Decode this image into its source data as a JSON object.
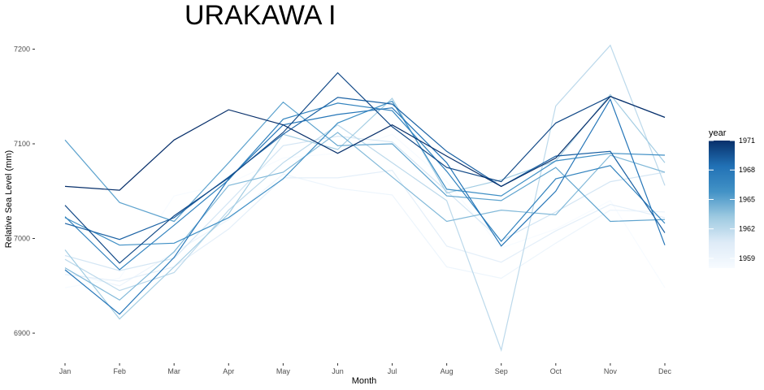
{
  "chart_data": {
    "type": "line",
    "title": "URAKAWA I",
    "xlabel": "Month",
    "ylabel": "Relative Sea Level (mm)",
    "categories": [
      "Jan",
      "Feb",
      "Mar",
      "Apr",
      "May",
      "Jun",
      "Jul",
      "Aug",
      "Sep",
      "Oct",
      "Nov",
      "Dec"
    ],
    "yticks": [
      6900,
      7000,
      7100,
      7200
    ],
    "ylim": [
      6870,
      7215
    ],
    "grid": false,
    "legend": {
      "title": "year",
      "placement": "right",
      "type": "colorbar",
      "range": [
        1958,
        1971
      ],
      "ticks": [
        1959,
        1962,
        1965,
        1968,
        1971
      ],
      "low_color": "#f7fbff",
      "high_color": "#08306b"
    },
    "series": [
      {
        "year": 1958,
        "values": [
          6948,
          6958,
          7045,
          7058,
          7085,
          7090,
          7110,
          7060,
          6990,
          7010,
          7040,
          6948
        ]
      },
      {
        "year": 1959,
        "values": [
          6965,
          6950,
          6985,
          7020,
          7068,
          7053,
          7046,
          6970,
          6958,
          6995,
          7030,
          7028
        ]
      },
      {
        "year": 1960,
        "values": [
          6962,
          6955,
          6970,
          7010,
          7064,
          7064,
          7072,
          6992,
          6975,
          7008,
          7036,
          7022
        ]
      },
      {
        "year": 1961,
        "values": [
          6982,
          6966,
          6979,
          7038,
          7098,
          7108,
          7102,
          7050,
          6998,
          7028,
          7060,
          7070
        ]
      },
      {
        "year": 1962,
        "values": [
          6978,
          6945,
          6964,
          7030,
          7080,
          7120,
          7080,
          7040,
          6882,
          7140,
          7204,
          7056
        ]
      },
      {
        "year": 1963,
        "values": [
          6988,
          6915,
          6970,
          7026,
          7110,
          7094,
          7148,
          7048,
          7062,
          7082,
          7152,
          7080
        ]
      },
      {
        "year": 1964,
        "values": [
          6969,
          6935,
          6986,
          7056,
          7070,
          7112,
          7065,
          7018,
          7030,
          7025,
          7088,
          7070
        ]
      },
      {
        "year": 1965,
        "values": [
          7104,
          7038,
          7018,
          7080,
          7144,
          7098,
          7100,
          7045,
          7040,
          7075,
          7018,
          7020
        ]
      },
      {
        "year": 1966,
        "values": [
          7022,
          6993,
          6995,
          7022,
          7063,
          7122,
          7145,
          7052,
          7045,
          7082,
          7090,
          7088
        ]
      },
      {
        "year": 1967,
        "values": [
          7023,
          6967,
          7014,
          7062,
          7126,
          7143,
          7135,
          7071,
          6997,
          7063,
          7077,
          7016
        ]
      },
      {
        "year": 1968,
        "values": [
          6967,
          6920,
          6980,
          7063,
          7120,
          7131,
          7138,
          7080,
          6992,
          7050,
          7147,
          6993
        ]
      },
      {
        "year": 1969,
        "values": [
          7016,
          6999,
          7022,
          7065,
          7110,
          7149,
          7142,
          7092,
          7055,
          7087,
          7092,
          7006
        ]
      },
      {
        "year": 1970,
        "values": [
          7035,
          6974,
          7024,
          7064,
          7112,
          7175,
          7118,
          7075,
          7060,
          7122,
          7150,
          7128
        ]
      },
      {
        "year": 1971,
        "values": [
          7055,
          7051,
          7104,
          7136,
          7120,
          7090,
          7120,
          7087,
          7055,
          7085,
          7150,
          7128
        ]
      }
    ]
  }
}
